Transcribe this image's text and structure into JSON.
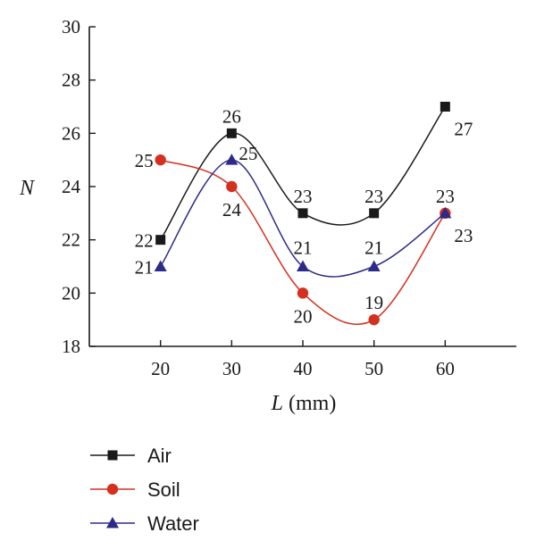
{
  "chart_data": {
    "type": "line",
    "x": [
      20,
      30,
      40,
      50,
      60
    ],
    "xlabel": {
      "var": "L",
      "unit": " (mm)"
    },
    "ylabel": "N",
    "xlim": [
      10,
      70
    ],
    "ylim": [
      18,
      30
    ],
    "xticks": [
      20,
      30,
      40,
      50,
      60
    ],
    "yticks": [
      18,
      20,
      22,
      24,
      26,
      28,
      30
    ],
    "grid": false,
    "legend": "bottom-left-below",
    "series": [
      {
        "name": "Air",
        "values": [
          22,
          26,
          23,
          23,
          27
        ],
        "color": "#1a1a1a",
        "marker": "square",
        "labels": [
          "22",
          "26",
          "23",
          "23",
          "27"
        ]
      },
      {
        "name": "Soil",
        "values": [
          25,
          24,
          20,
          19,
          23
        ],
        "color": "#d4301f",
        "marker": "circle",
        "labels": [
          "25",
          "24",
          "20",
          "19",
          "23"
        ]
      },
      {
        "name": "Water",
        "values": [
          21,
          25,
          21,
          21,
          23
        ],
        "color": "#2d2a8a",
        "marker": "triangle",
        "labels": [
          "21",
          "25",
          "21",
          "21",
          "23"
        ]
      }
    ]
  }
}
